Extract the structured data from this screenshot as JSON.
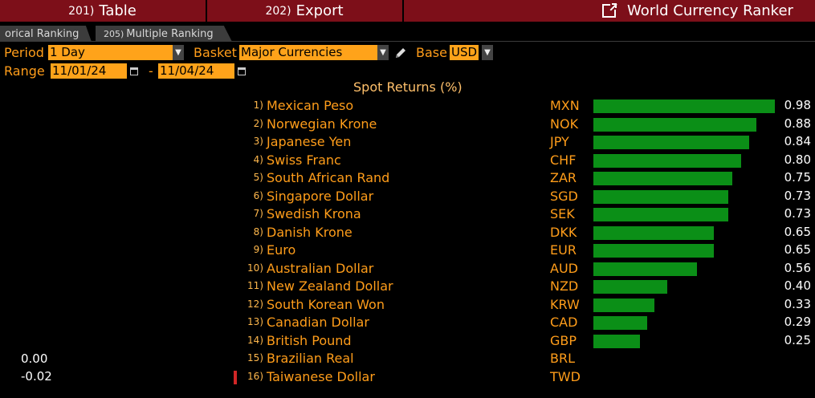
{
  "toolbar": {
    "table": {
      "num": "201)",
      "label": "Table"
    },
    "export": {
      "num": "202)",
      "label": "Export"
    },
    "app_title": "World Currency Ranker"
  },
  "tabs": [
    {
      "num": "",
      "label": "orical Ranking"
    },
    {
      "num": "205)",
      "label": "Multiple Ranking"
    }
  ],
  "controls": {
    "period_label": "Period",
    "period_value": "1 Day",
    "basket_label": "Basket",
    "basket_value": "Major Currencies",
    "base_label": "Base",
    "base_value": "USD",
    "range_label": "Range",
    "range_from": "11/01/24",
    "range_sep": "-",
    "range_to": "11/04/24"
  },
  "chart_data": {
    "type": "bar",
    "title": "Spot Returns (%)",
    "rows": [
      {
        "rank": "1)",
        "name": "Mexican Peso",
        "code": "MXN",
        "value": 0.98,
        "label": "0.98"
      },
      {
        "rank": "2)",
        "name": "Norwegian Krone",
        "code": "NOK",
        "value": 0.88,
        "label": "0.88"
      },
      {
        "rank": "3)",
        "name": "Japanese Yen",
        "code": "JPY",
        "value": 0.84,
        "label": "0.84"
      },
      {
        "rank": "4)",
        "name": "Swiss Franc",
        "code": "CHF",
        "value": 0.8,
        "label": "0.80"
      },
      {
        "rank": "5)",
        "name": "South African Rand",
        "code": "ZAR",
        "value": 0.75,
        "label": "0.75"
      },
      {
        "rank": "6)",
        "name": "Singapore Dollar",
        "code": "SGD",
        "value": 0.73,
        "label": "0.73"
      },
      {
        "rank": "7)",
        "name": "Swedish Krona",
        "code": "SEK",
        "value": 0.73,
        "label": "0.73"
      },
      {
        "rank": "8)",
        "name": "Danish Krone",
        "code": "DKK",
        "value": 0.65,
        "label": "0.65"
      },
      {
        "rank": "9)",
        "name": "Euro",
        "code": "EUR",
        "value": 0.65,
        "label": "0.65"
      },
      {
        "rank": "10)",
        "name": "Australian Dollar",
        "code": "AUD",
        "value": 0.56,
        "label": "0.56"
      },
      {
        "rank": "11)",
        "name": "New Zealand Dollar",
        "code": "NZD",
        "value": 0.4,
        "label": "0.40"
      },
      {
        "rank": "12)",
        "name": "South Korean Won",
        "code": "KRW",
        "value": 0.33,
        "label": "0.33"
      },
      {
        "rank": "13)",
        "name": "Canadian Dollar",
        "code": "CAD",
        "value": 0.29,
        "label": "0.29"
      },
      {
        "rank": "14)",
        "name": "British Pound",
        "code": "GBP",
        "value": 0.25,
        "label": "0.25"
      },
      {
        "rank": "15)",
        "name": "Brazilian Real",
        "code": "BRL",
        "value": 0.0,
        "label": ""
      },
      {
        "rank": "16)",
        "name": "Taiwanese Dollar",
        "code": "TWD",
        "value": -0.02,
        "label": ""
      }
    ],
    "axis_values": [
      "0.00",
      "-0.02"
    ],
    "bar_color": "#0b8f17",
    "negative_color": "#d12626"
  },
  "colors": {
    "toolbar": "#7d0f19",
    "field": "#ffa31a",
    "text": "#ff9d1a"
  }
}
